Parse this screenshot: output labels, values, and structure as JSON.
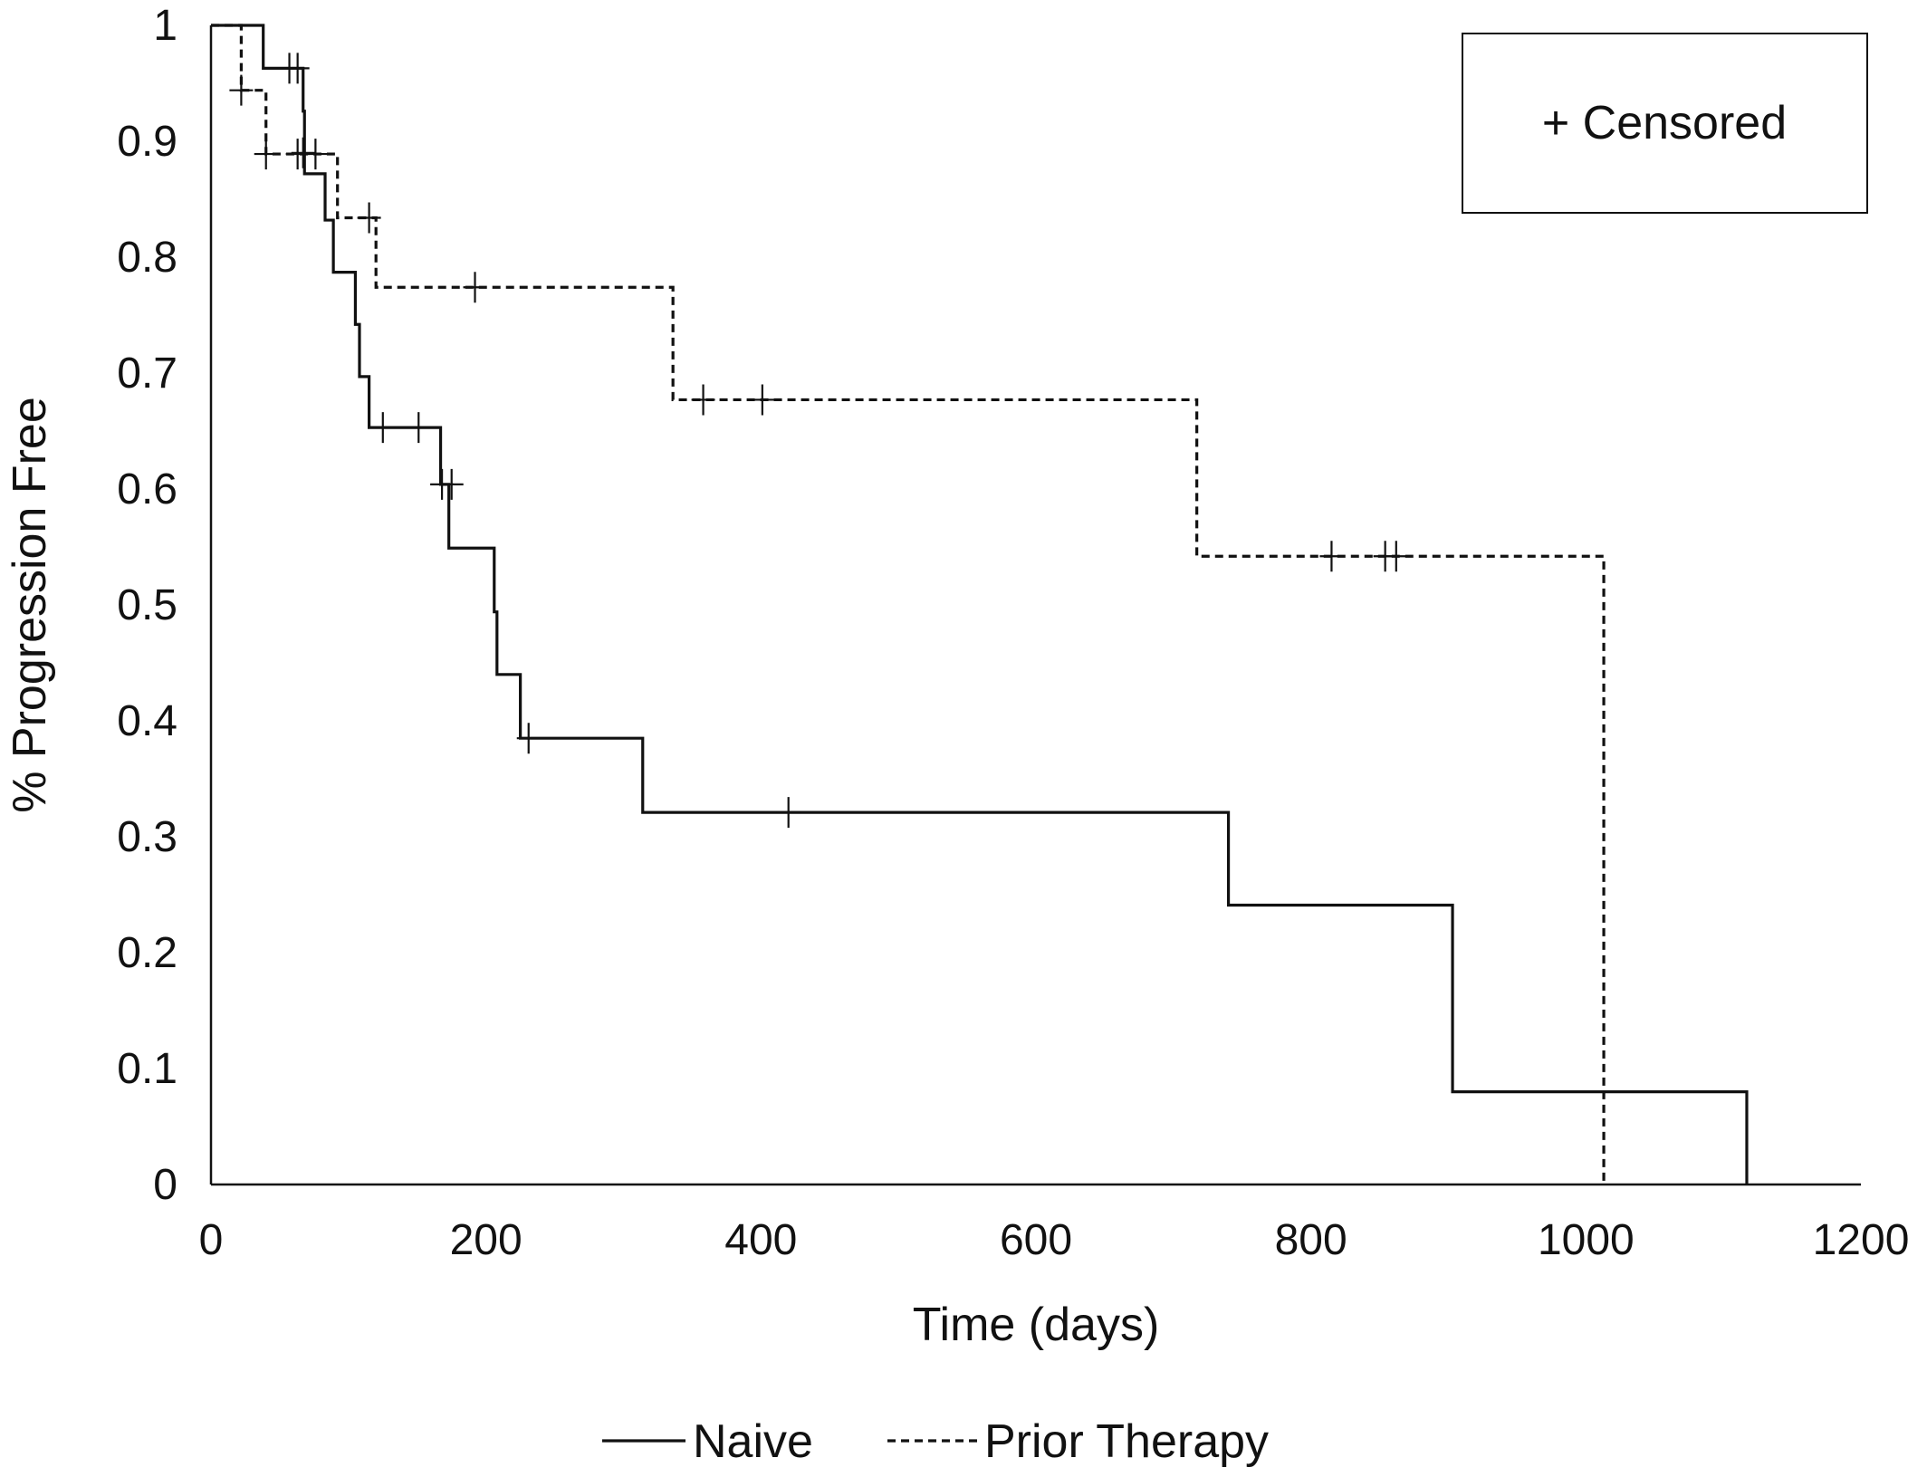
{
  "chart_data": {
    "type": "line",
    "subtype": "kaplan-meier step",
    "xlabel": "Time (days)",
    "ylabel": "% Progression Free",
    "xlim": [
      0,
      1200
    ],
    "ylim": [
      0,
      1
    ],
    "xticks": [
      0,
      200,
      400,
      600,
      800,
      1000,
      1200
    ],
    "yticks": [
      0,
      0.1,
      0.2,
      0.3,
      0.4,
      0.5,
      0.6,
      0.7,
      0.8,
      0.9,
      1
    ],
    "xtick_labels": [
      "0",
      "200",
      "400",
      "600",
      "800",
      "1000",
      "1200"
    ],
    "ytick_labels": [
      "0",
      "0.1",
      "0.2",
      "0.3",
      "0.4",
      "0.5",
      "0.6",
      "0.7",
      "0.8",
      "0.9",
      "1"
    ],
    "grid": false,
    "legend_position": "bottom",
    "censor_box": {
      "label": "+ Censored",
      "position": "top-right"
    },
    "series": [
      {
        "name": "Naive",
        "style": "solid",
        "color": "#111111",
        "steps": [
          [
            0,
            1
          ],
          [
            38,
            0.963
          ],
          [
            67,
            0.926
          ],
          [
            68,
            0.872
          ],
          [
            83,
            0.832
          ],
          [
            89,
            0.787
          ],
          [
            105,
            0.742
          ],
          [
            108,
            0.697
          ],
          [
            115,
            0.653
          ],
          [
            167,
            0.604
          ],
          [
            173,
            0.549
          ],
          [
            206,
            0.494
          ],
          [
            208,
            0.44
          ],
          [
            225,
            0.385
          ],
          [
            314,
            0.321
          ],
          [
            740,
            0.241
          ],
          [
            903,
            0.08
          ],
          [
            1117,
            0
          ]
        ],
        "censored": [
          [
            57,
            0.963
          ],
          [
            63,
            0.963
          ],
          [
            67,
            0.89
          ],
          [
            125,
            0.653
          ],
          [
            151,
            0.653
          ],
          [
            168,
            0.604
          ],
          [
            175,
            0.604
          ],
          [
            231,
            0.385
          ],
          [
            420,
            0.321
          ]
        ]
      },
      {
        "name": "Prior Therapy",
        "style": "dashed",
        "color": "#111111",
        "steps": [
          [
            0,
            1
          ],
          [
            22,
            0.944
          ],
          [
            40,
            0.889
          ],
          [
            92,
            0.834
          ],
          [
            120,
            0.774
          ],
          [
            336,
            0.677
          ],
          [
            717,
            0.542
          ],
          [
            1013,
            0
          ]
        ],
        "censored": [
          [
            22,
            0.944
          ],
          [
            40,
            0.889
          ],
          [
            63,
            0.889
          ],
          [
            76,
            0.889
          ],
          [
            115,
            0.834
          ],
          [
            192,
            0.774
          ],
          [
            358,
            0.677
          ],
          [
            401,
            0.677
          ],
          [
            815,
            0.542
          ],
          [
            854,
            0.542
          ],
          [
            862,
            0.542
          ]
        ]
      }
    ]
  }
}
